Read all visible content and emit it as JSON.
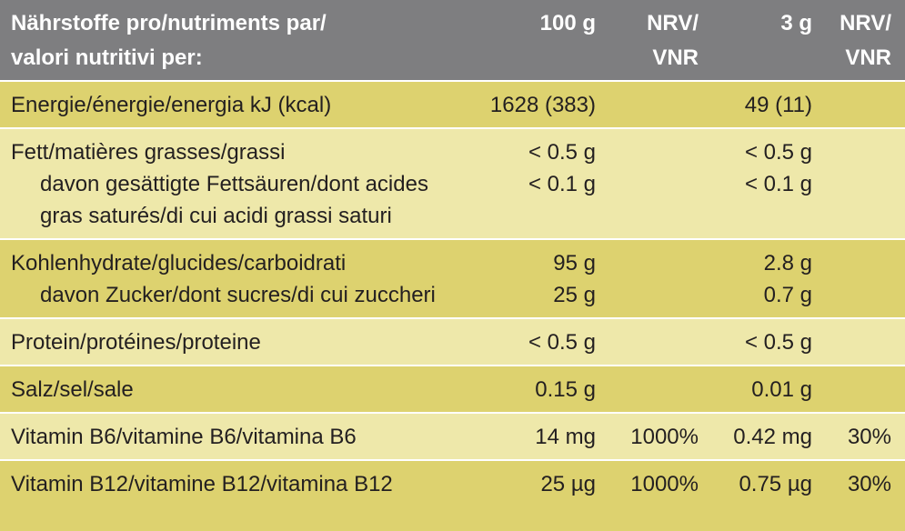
{
  "header": {
    "label": [
      "Nährstoffe pro/nutriments par/",
      "valori nutritivi per:"
    ],
    "per_100g": "100 g",
    "nrv_100g": [
      "NRV/",
      "VNR"
    ],
    "per_3g": "3 g",
    "nrv_3g": [
      "NRV/",
      "VNR"
    ]
  },
  "groups": [
    {
      "lines": [
        {
          "label": "Energie/énergie/energia kJ (kcal)",
          "per_100g": "1628 (383)",
          "per_3g": "49 (11)"
        }
      ]
    },
    {
      "lines": [
        {
          "label": "Fett/matières grasses/grassi",
          "per_100g": "< 0.5 g",
          "per_3g": "< 0.5 g"
        },
        {
          "indent": true,
          "label": "davon gesättigte Fettsäuren/dont acides",
          "per_100g": "< 0.1 g",
          "per_3g": "< 0.1 g"
        },
        {
          "indent": true,
          "label": "gras saturés/di cui acidi grassi saturi"
        }
      ]
    },
    {
      "lines": [
        {
          "label": "Kohlenhydrate/glucides/carboidrati",
          "per_100g": "95 g",
          "per_3g": "2.8 g"
        },
        {
          "indent": true,
          "label": "davon Zucker/dont sucres/di cui zuccheri",
          "per_100g": "25 g",
          "per_3g": "0.7 g"
        }
      ]
    },
    {
      "lines": [
        {
          "label": "Protein/protéines/proteine",
          "per_100g": "< 0.5 g",
          "per_3g": "< 0.5 g"
        }
      ]
    },
    {
      "lines": [
        {
          "label": "Salz/sel/sale",
          "per_100g": "0.15 g",
          "per_3g": "0.01 g"
        }
      ]
    },
    {
      "lines": [
        {
          "label": "Vitamin B6/vitamine B6/vitamina B6",
          "per_100g": "14 mg",
          "nrv_100g": "1000%",
          "per_3g": "0.42 mg",
          "nrv_3g": "30%"
        }
      ]
    },
    {
      "lines": [
        {
          "label": "Vitamin B12/vitamine B12/vitamina B12",
          "per_100g": "25 µg",
          "nrv_100g": "1000%",
          "per_3g": "0.75 µg",
          "nrv_3g": "30%"
        }
      ]
    }
  ]
}
